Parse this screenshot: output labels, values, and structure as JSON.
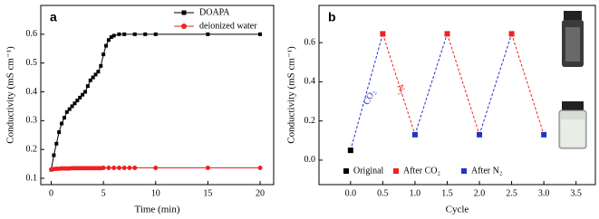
{
  "chart_data": [
    {
      "type": "line",
      "label": "a",
      "xlabel": "Time (min)",
      "ylabel": "Conductivity (mS cm⁻¹)",
      "xlim": [
        -1,
        21.3
      ],
      "ylim": [
        0.078,
        0.7
      ],
      "xticks": [
        0,
        5,
        10,
        15,
        20
      ],
      "yticks": [
        0.1,
        0.2,
        0.3,
        0.4,
        0.5,
        0.6
      ],
      "series": [
        {
          "name": "DOAPA",
          "color": "#000000",
          "marker": "square",
          "x": [
            0,
            0.25,
            0.5,
            0.75,
            1,
            1.25,
            1.5,
            1.75,
            2,
            2.25,
            2.5,
            2.75,
            3,
            3.25,
            3.5,
            3.75,
            4,
            4.25,
            4.5,
            4.75,
            5,
            5.25,
            5.5,
            5.75,
            6,
            6.5,
            7,
            8,
            9,
            10,
            15,
            20
          ],
          "values": [
            0.13,
            0.18,
            0.22,
            0.26,
            0.29,
            0.31,
            0.33,
            0.34,
            0.35,
            0.36,
            0.37,
            0.38,
            0.39,
            0.4,
            0.42,
            0.44,
            0.45,
            0.46,
            0.47,
            0.49,
            0.53,
            0.56,
            0.58,
            0.59,
            0.595,
            0.6,
            0.6,
            0.6,
            0.6,
            0.6,
            0.6,
            0.6
          ]
        },
        {
          "name": "deionized water",
          "color": "#ee2222",
          "marker": "circle",
          "x": [
            0,
            0.25,
            0.5,
            0.75,
            1,
            1.25,
            1.5,
            1.75,
            2,
            2.25,
            2.5,
            2.75,
            3,
            3.25,
            3.5,
            3.75,
            4,
            4.25,
            4.5,
            4.75,
            5,
            5.5,
            6,
            6.5,
            7,
            7.5,
            8,
            10,
            15,
            20
          ],
          "values": [
            0.13,
            0.132,
            0.133,
            0.133,
            0.134,
            0.134,
            0.134,
            0.134,
            0.135,
            0.135,
            0.135,
            0.135,
            0.135,
            0.135,
            0.135,
            0.135,
            0.135,
            0.135,
            0.135,
            0.135,
            0.136,
            0.136,
            0.136,
            0.136,
            0.136,
            0.136,
            0.136,
            0.136,
            0.136,
            0.136
          ]
        }
      ]
    },
    {
      "type": "scatter",
      "label": "b",
      "xlabel": "Cycle",
      "ylabel": "Conductivity (mS cm⁻¹)",
      "xlim": [
        -0.49,
        3.8
      ],
      "ylim": [
        -0.125,
        0.79
      ],
      "xticks": [
        {
          "value": 0,
          "label": "0.0"
        },
        0.5,
        {
          "value": 1,
          "label": "1.0"
        },
        1.5,
        {
          "value": 2,
          "label": "2.0"
        },
        2.5,
        {
          "value": 3,
          "label": "3.0"
        },
        3.5
      ],
      "yticks": [
        {
          "value": 0,
          "label": "0.0"
        },
        0.2,
        0.4,
        0.6
      ],
      "annotations": [
        "CO₂",
        "N₂"
      ],
      "series": [
        {
          "name": "Original",
          "color": "#000000",
          "marker": "square",
          "x": [
            0
          ],
          "values": [
            0.05
          ]
        },
        {
          "name": "After CO₂",
          "color": "#ee2222",
          "marker": "square",
          "x": [
            0.5,
            1.5,
            2.5
          ],
          "values": [
            0.645,
            0.645,
            0.645
          ]
        },
        {
          "name": "After N₂",
          "color": "#2233cc",
          "marker": "square",
          "x": [
            1,
            2,
            3
          ],
          "values": [
            0.13,
            0.13,
            0.13
          ]
        }
      ]
    }
  ]
}
